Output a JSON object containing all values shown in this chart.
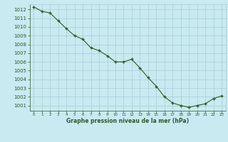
{
  "x": [
    0,
    1,
    2,
    3,
    4,
    5,
    6,
    7,
    8,
    9,
    10,
    11,
    12,
    13,
    14,
    15,
    16,
    17,
    18,
    19,
    20,
    21,
    22,
    23
  ],
  "y": [
    1012.3,
    1011.8,
    1011.6,
    1010.7,
    1009.8,
    1009.0,
    1008.6,
    1007.6,
    1007.3,
    1006.7,
    1006.0,
    1006.0,
    1006.3,
    1005.3,
    1004.2,
    1003.2,
    1002.0,
    1001.3,
    1001.0,
    1000.8,
    1001.0,
    1001.2,
    1001.8,
    1002.1
  ],
  "line_color": "#2d5a27",
  "marker": "+",
  "marker_color": "#2d5a27",
  "bg_color": "#c8eaf0",
  "grid_minor_color": "#d8eef4",
  "grid_major_color": "#a8ccd8",
  "tick_color": "#2d5a27",
  "label_color": "#2d5a27",
  "xlabel": "Graphe pression niveau de la mer (hPa)",
  "ylim_min": 1000.4,
  "ylim_max": 1012.6,
  "yticks": [
    1001,
    1002,
    1003,
    1004,
    1005,
    1006,
    1007,
    1008,
    1009,
    1010,
    1011,
    1012
  ],
  "xticks": [
    0,
    1,
    2,
    3,
    4,
    5,
    6,
    7,
    8,
    9,
    10,
    11,
    12,
    13,
    14,
    15,
    16,
    17,
    18,
    19,
    20,
    21,
    22,
    23
  ]
}
